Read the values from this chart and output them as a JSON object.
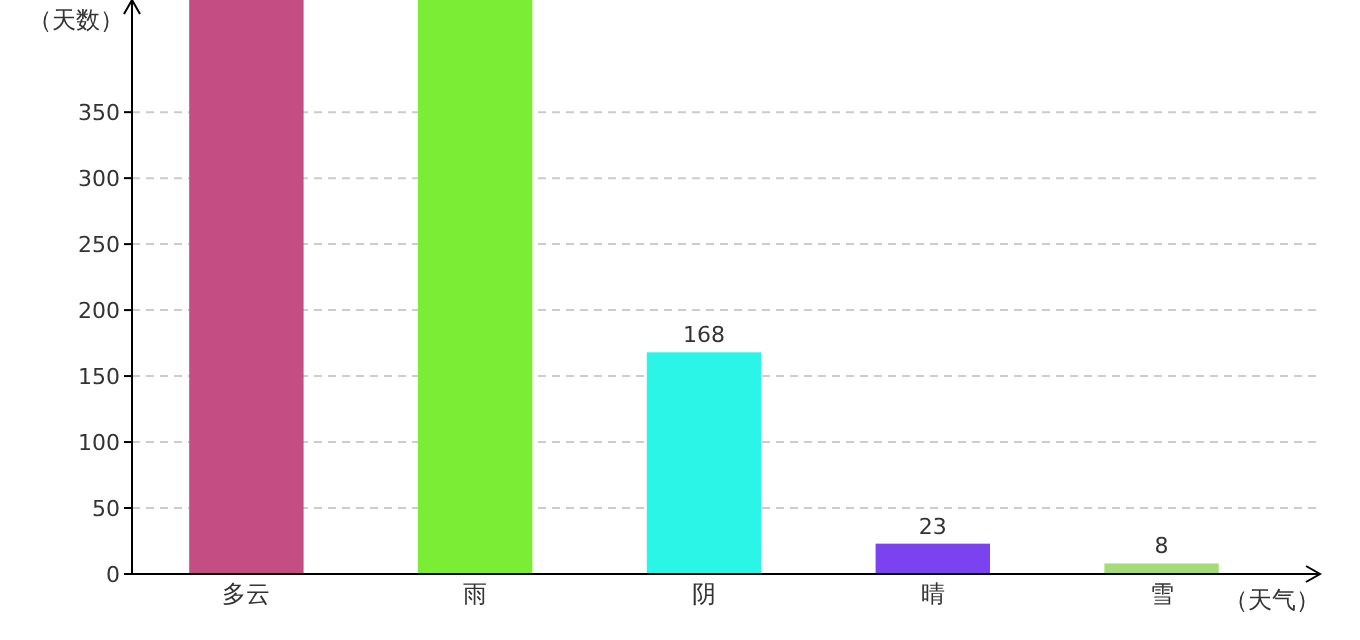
{
  "chart_data": {
    "type": "bar",
    "xlabel": "（天气）",
    "ylabel": "（天数）",
    "categories": [
      "多云",
      "雨",
      "阴",
      "晴",
      "雪"
    ],
    "values": [
      435,
      435,
      168,
      23,
      8
    ],
    "colors": [
      "#c44e83",
      "#7bed35",
      "#2af5e6",
      "#7b43f0",
      "#a5dc78"
    ],
    "value_labels": [
      null,
      null,
      "168",
      "23",
      "8"
    ],
    "ylim": [
      0,
      435
    ],
    "yticks": [
      0,
      50,
      100,
      150,
      200,
      250,
      300,
      350
    ],
    "grid": "y"
  }
}
